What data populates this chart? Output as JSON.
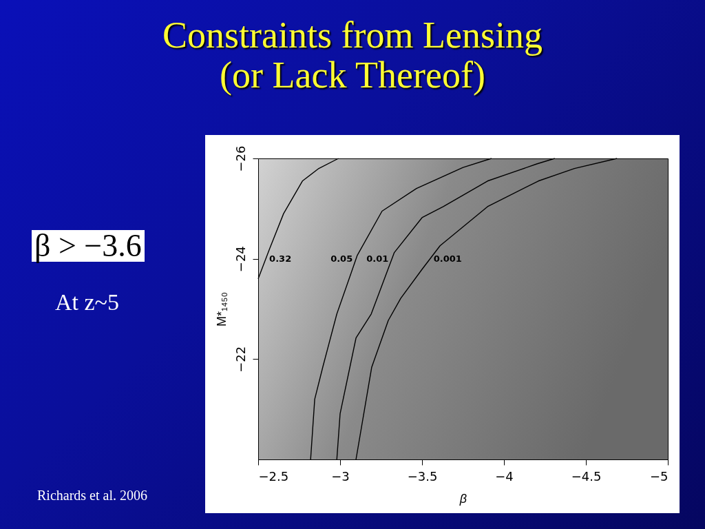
{
  "chart_data": {
    "type": "line",
    "title": "Constraints from Lensing\n(or Lack Thereof)",
    "xlabel": "β",
    "ylabel": "M*₁₄₅₀",
    "xlim": [
      -2.5,
      -5
    ],
    "ylim": [
      -20,
      -26
    ],
    "xticks": [
      -2.5,
      -3,
      -3.5,
      -4,
      -4.5,
      -5
    ],
    "yticks": [
      -22,
      -24,
      -26
    ],
    "grid": false,
    "series": [
      {
        "name": "0.32",
        "color": "#000000",
        "x": [
          -2.5,
          -2.57,
          -2.655,
          -2.77,
          -2.87,
          -2.99
        ],
        "values": [
          -23.6,
          -24.2,
          -24.9,
          -25.55,
          -25.8,
          -26
        ]
      },
      {
        "name": "0.05",
        "color": "#000000",
        "x": [
          -2.82,
          -2.845,
          -2.895,
          -2.98,
          -3.105,
          -3.256,
          -3.466,
          -3.75,
          -3.924
        ],
        "values": [
          -20,
          -21.2,
          -21.85,
          -22.9,
          -24.07,
          -24.95,
          -25.4,
          -25.82,
          -26
        ]
      },
      {
        "name": "0.01",
        "color": "#000000",
        "x": [
          -2.98,
          -3.0,
          -3.097,
          -3.19,
          -3.33,
          -3.5,
          -3.63,
          -3.9,
          -4.2,
          -4.31
        ],
        "values": [
          -20,
          -20.91,
          -22.42,
          -22.9,
          -24.12,
          -24.82,
          -25.04,
          -25.55,
          -25.89,
          -26
        ]
      },
      {
        "name": "0.001",
        "color": "#000000",
        "x": [
          -3.097,
          -3.193,
          -3.294,
          -3.37,
          -3.5,
          -3.61,
          -3.9,
          -4.21,
          -4.43,
          -4.69
        ],
        "values": [
          -20,
          -21.84,
          -22.77,
          -23.21,
          -23.79,
          -24.26,
          -25.04,
          -25.55,
          -25.8,
          -26
        ]
      }
    ],
    "annotations": [
      "β > −3.6",
      "At z~5",
      "Richards et al. 2006"
    ]
  }
}
